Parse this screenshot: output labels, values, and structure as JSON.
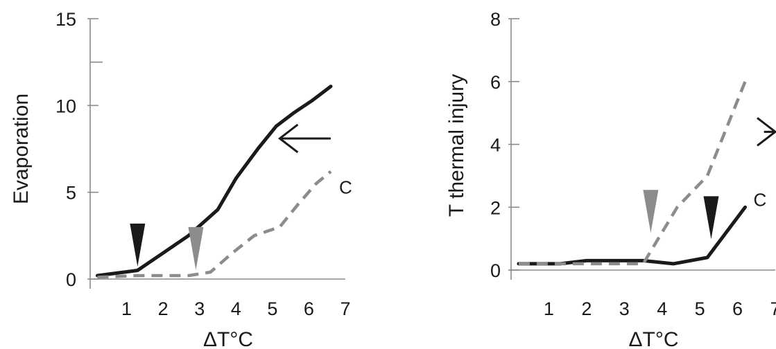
{
  "colors": {
    "solid": "#1a1a1a",
    "dashed": "#8c8c8c",
    "arrow_black": "#1a1a1a",
    "arrow_gray": "#8c8c8c"
  },
  "chart_data": [
    {
      "type": "line",
      "xlabel": "ΔT°C",
      "ylabel": "Evaporation",
      "xlim": [
        0,
        7
      ],
      "ylim": [
        0,
        15
      ],
      "x_ticks": [
        1,
        2,
        3,
        4,
        5,
        6,
        7
      ],
      "y_ticks": [
        0,
        5,
        10,
        15
      ],
      "y_ticks_unlabeled": [
        12.5
      ],
      "grid": false,
      "series": [
        {
          "style": "solid",
          "color": "#1a1a1a",
          "x": [
            0.2,
            1.3,
            2.0,
            2.7,
            3.5,
            4.0,
            4.6,
            5.1,
            5.6,
            6.1,
            6.6
          ],
          "y": [
            0.2,
            0.5,
            1.5,
            2.5,
            4.0,
            5.8,
            7.5,
            8.8,
            9.6,
            10.3,
            11.1
          ]
        },
        {
          "style": "dashed",
          "color": "#8c8c8c",
          "x": [
            0.2,
            1.3,
            2.0,
            2.7,
            3.3,
            3.9,
            4.5,
            5.2,
            5.7,
            6.2,
            6.6
          ],
          "y": [
            0.1,
            0.2,
            0.2,
            0.2,
            0.4,
            1.5,
            2.5,
            3.0,
            4.3,
            5.5,
            6.2
          ],
          "label": "C"
        }
      ],
      "annotations": [
        {
          "kind": "triangle-down",
          "color": "#1a1a1a",
          "x": 1.3,
          "y": 2.2
        },
        {
          "kind": "triangle-down",
          "color": "#8c8c8c",
          "x": 2.9,
          "y": 2.0
        },
        {
          "kind": "arrow-left",
          "color": "#1a1a1a",
          "x_from": 6.6,
          "x_to": 5.2,
          "y": 8.1
        }
      ]
    },
    {
      "type": "line",
      "xlabel": "ΔT°C",
      "ylabel": "T thermal injury",
      "xlim": [
        0,
        7
      ],
      "ylim": [
        0,
        8
      ],
      "x_ticks": [
        1,
        2,
        3,
        4,
        5,
        6,
        7
      ],
      "y_ticks": [
        0,
        2,
        4,
        6,
        8
      ],
      "grid": false,
      "series": [
        {
          "style": "solid",
          "color": "#1a1a1a",
          "x": [
            0.2,
            1.3,
            2.0,
            2.7,
            3.5,
            4.3,
            5.2,
            6.2
          ],
          "y": [
            0.2,
            0.2,
            0.3,
            0.3,
            0.3,
            0.2,
            0.4,
            2.0
          ],
          "label": "C"
        },
        {
          "style": "dashed",
          "color": "#8c8c8c",
          "x": [
            0.2,
            1.3,
            2.0,
            2.7,
            3.5,
            4.4,
            5.2,
            6.2
          ],
          "y": [
            0.2,
            0.2,
            0.2,
            0.2,
            0.2,
            2.0,
            3.0,
            6.0
          ]
        }
      ],
      "annotations": [
        {
          "kind": "triangle-down",
          "color": "#8c8c8c",
          "x": 3.7,
          "y": 2.0
        },
        {
          "kind": "triangle-down",
          "color": "#1a1a1a",
          "x": 5.3,
          "y": 1.8
        },
        {
          "kind": "arrow-right",
          "color": "#1a1a1a",
          "x_from": 6.7,
          "x_to": 7.4,
          "y": 4.4
        }
      ]
    }
  ]
}
